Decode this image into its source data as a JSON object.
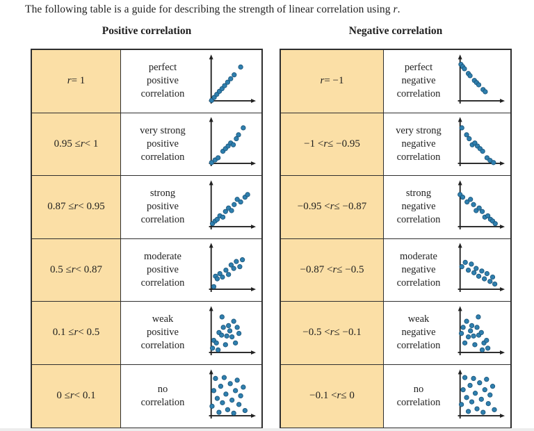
{
  "page": {
    "intro": "The following table is a guide for describing the strength of linear correlation using r."
  },
  "colors": {
    "highlight_bg": "#fbdfa6",
    "dot_fill": "#2f7fae",
    "dot_stroke": "#1b557a",
    "axis": "#222222",
    "table_border": "#2e2e2e"
  },
  "tables": [
    {
      "heading": "Positive correlation",
      "rows": [
        {
          "range": "r = 1",
          "description": "perfect\npositive\ncorrelation",
          "plot": [
            [
              1,
              1
            ],
            [
              7,
              8
            ],
            [
              13,
              15
            ],
            [
              19,
              22
            ],
            [
              25,
              28
            ],
            [
              31,
              35
            ],
            [
              38,
              43
            ],
            [
              45,
              51
            ],
            [
              53,
              60
            ],
            [
              68,
              78
            ]
          ]
        },
        {
          "range": "0.95 ≤ r < 1",
          "description": "very strong\npositive\ncorrelation",
          "plot": [
            [
              1,
              2
            ],
            [
              9,
              8
            ],
            [
              16,
              13
            ],
            [
              27,
              28
            ],
            [
              33,
              34
            ],
            [
              39,
              40
            ],
            [
              45,
              47
            ],
            [
              51,
              43
            ],
            [
              58,
              57
            ],
            [
              63,
              66
            ],
            [
              74,
              82
            ]
          ]
        },
        {
          "range": "0.87 ≤ r < 0.95",
          "description": "strong\npositive\ncorrelation",
          "plot": [
            [
              3,
              7
            ],
            [
              9,
              13
            ],
            [
              14,
              17
            ],
            [
              20,
              25
            ],
            [
              27,
              22
            ],
            [
              33,
              35
            ],
            [
              40,
              43
            ],
            [
              47,
              37
            ],
            [
              53,
              51
            ],
            [
              60,
              63
            ],
            [
              68,
              57
            ],
            [
              78,
              68
            ],
            [
              84,
              74
            ]
          ]
        },
        {
          "range": "0.5 ≤ r < 0.87",
          "description": "moderate\npositive\ncorrelation",
          "plot": [
            [
              6,
              6
            ],
            [
              10,
              30
            ],
            [
              14,
              24
            ],
            [
              20,
              36
            ],
            [
              26,
              28
            ],
            [
              34,
              44
            ],
            [
              40,
              34
            ],
            [
              46,
              56
            ],
            [
              52,
              48
            ],
            [
              58,
              64
            ],
            [
              66,
              52
            ],
            [
              72,
              68
            ]
          ]
        },
        {
          "range": "0.1 ≤ r < 0.5",
          "description": "weak\npositive\ncorrelation",
          "plot": [
            [
              3,
              10
            ],
            [
              6,
              28
            ],
            [
              12,
              22
            ],
            [
              16,
              6
            ],
            [
              18,
              46
            ],
            [
              24,
              40
            ],
            [
              25,
              82
            ],
            [
              28,
              58
            ],
            [
              33,
              18
            ],
            [
              36,
              38
            ],
            [
              40,
              62
            ],
            [
              43,
              50
            ],
            [
              48,
              36
            ],
            [
              52,
              72
            ],
            [
              56,
              22
            ],
            [
              60,
              58
            ],
            [
              64,
              44
            ]
          ]
        },
        {
          "range": "0 ≤ r < 0.1",
          "description": "no\ncorrelation",
          "plot": [
            [
              2,
              22
            ],
            [
              6,
              58
            ],
            [
              10,
              86
            ],
            [
              14,
              40
            ],
            [
              18,
              8
            ],
            [
              22,
              68
            ],
            [
              26,
              30
            ],
            [
              30,
              88
            ],
            [
              34,
              50
            ],
            [
              38,
              14
            ],
            [
              44,
              74
            ],
            [
              48,
              36
            ],
            [
              52,
              6
            ],
            [
              56,
              58
            ],
            [
              60,
              82
            ],
            [
              64,
              26
            ],
            [
              68,
              46
            ],
            [
              74,
              66
            ],
            [
              78,
              12
            ]
          ]
        }
      ]
    },
    {
      "heading": "Negative correlation",
      "rows": [
        {
          "range": "r = −1",
          "description": "perfect\nnegative\ncorrelation",
          "plot": [
            [
              2,
              84
            ],
            [
              6,
              79
            ],
            [
              10,
              74
            ],
            [
              19,
              63
            ],
            [
              23,
              58
            ],
            [
              33,
              47
            ],
            [
              38,
              42
            ],
            [
              43,
              37
            ],
            [
              53,
              26
            ],
            [
              58,
              21
            ]
          ]
        },
        {
          "range": "−1 < r ≤ −0.95",
          "description": "very strong\nnegative\ncorrelation",
          "plot": [
            [
              4,
              82
            ],
            [
              15,
              66
            ],
            [
              21,
              57
            ],
            [
              28,
              43
            ],
            [
              34,
              47
            ],
            [
              40,
              40
            ],
            [
              46,
              34
            ],
            [
              52,
              28
            ],
            [
              62,
              13
            ],
            [
              69,
              7
            ],
            [
              77,
              2
            ]
          ]
        },
        {
          "range": "−0.95 < r ≤ −0.87",
          "description": "strong\nnegative\ncorrelation",
          "plot": [
            [
              0,
              74
            ],
            [
              6,
              68
            ],
            [
              16,
              57
            ],
            [
              24,
              63
            ],
            [
              31,
              51
            ],
            [
              37,
              37
            ],
            [
              44,
              43
            ],
            [
              51,
              35
            ],
            [
              57,
              22
            ],
            [
              64,
              25
            ],
            [
              70,
              17
            ],
            [
              75,
              13
            ],
            [
              81,
              7
            ]
          ]
        },
        {
          "range": "−0.87 < r ≤ −0.5",
          "description": "moderate\nnegative\ncorrelation",
          "plot": [
            [
              4,
              52
            ],
            [
              12,
              62
            ],
            [
              19,
              44
            ],
            [
              26,
              58
            ],
            [
              32,
              38
            ],
            [
              37,
              48
            ],
            [
              43,
              30
            ],
            [
              50,
              42
            ],
            [
              56,
              24
            ],
            [
              62,
              36
            ],
            [
              69,
              18
            ],
            [
              75,
              28
            ],
            [
              80,
              12
            ]
          ]
        },
        {
          "range": "−0.5 < r ≤ −0.1",
          "description": "weak\nnegative\ncorrelation",
          "plot": [
            [
              3,
              44
            ],
            [
              7,
              58
            ],
            [
              11,
              22
            ],
            [
              15,
              72
            ],
            [
              19,
              36
            ],
            [
              24,
              50
            ],
            [
              27,
              62
            ],
            [
              31,
              38
            ],
            [
              34,
              18
            ],
            [
              39,
              58
            ],
            [
              42,
              82
            ],
            [
              43,
              40
            ],
            [
              49,
              46
            ],
            [
              51,
              6
            ],
            [
              55,
              22
            ],
            [
              61,
              28
            ],
            [
              64,
              10
            ]
          ]
        },
        {
          "range": "−0.1 < r ≤ 0",
          "description": "no\ncorrelation",
          "plot": [
            [
              3,
              26
            ],
            [
              7,
              60
            ],
            [
              11,
              88
            ],
            [
              15,
              42
            ],
            [
              19,
              10
            ],
            [
              23,
              70
            ],
            [
              27,
              32
            ],
            [
              31,
              86
            ],
            [
              35,
              52
            ],
            [
              39,
              16
            ],
            [
              45,
              76
            ],
            [
              49,
              38
            ],
            [
              53,
              8
            ],
            [
              57,
              60
            ],
            [
              61,
              84
            ],
            [
              65,
              28
            ],
            [
              69,
              48
            ],
            [
              75,
              68
            ],
            [
              79,
              14
            ]
          ]
        }
      ]
    }
  ]
}
